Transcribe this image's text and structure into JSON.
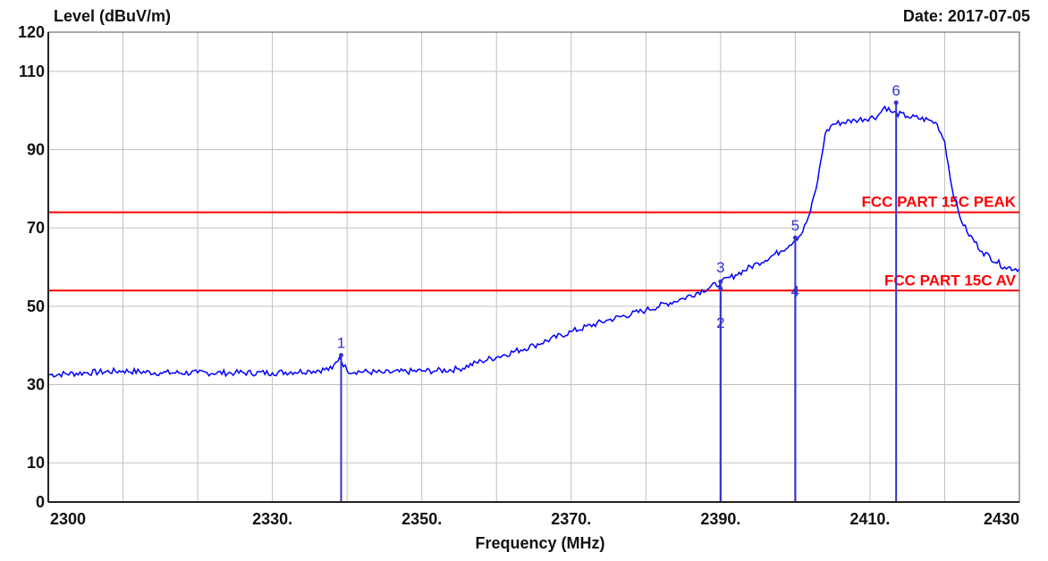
{
  "chart_data": {
    "type": "line",
    "ylabel": "Level (dBuV/m)",
    "date_label": "Date: 2017-07-05",
    "xlabel": "Frequency (MHz)",
    "xlim": [
      2300,
      2430
    ],
    "ylim": [
      0,
      120
    ],
    "grid": true,
    "x_ticks": [
      {
        "value": 2300,
        "label": "2300"
      },
      {
        "value": 2330,
        "label": "2330."
      },
      {
        "value": 2350,
        "label": "2350."
      },
      {
        "value": 2370,
        "label": "2370."
      },
      {
        "value": 2390,
        "label": "2390."
      },
      {
        "value": 2410,
        "label": "2410."
      },
      {
        "value": 2430,
        "label": "2430"
      }
    ],
    "y_ticks": [
      {
        "value": 0,
        "label": "0"
      },
      {
        "value": 10,
        "label": "10"
      },
      {
        "value": 30,
        "label": "30"
      },
      {
        "value": 50,
        "label": "50"
      },
      {
        "value": 70,
        "label": "70"
      },
      {
        "value": 90,
        "label": "90"
      },
      {
        "value": 110,
        "label": "110"
      },
      {
        "value": 120,
        "label": "120"
      }
    ],
    "limit_lines": [
      {
        "name": "FCC PART 15C PEAK",
        "value": 74,
        "color": "#ff0000"
      },
      {
        "name": "FCC PART 15C  AV",
        "value": 54,
        "color": "#ff0000"
      }
    ],
    "series": [
      {
        "color": "#0000ff",
        "x": [
          2300,
          2305,
          2310,
          2315,
          2320,
          2325,
          2330,
          2335,
          2338,
          2339,
          2340,
          2345,
          2350,
          2352,
          2355,
          2358,
          2360,
          2365,
          2370,
          2375,
          2380,
          2385,
          2390,
          2392,
          2395,
          2398,
          2400,
          2401,
          2402,
          2403,
          2404,
          2405,
          2408,
          2411,
          2412,
          2413,
          2415,
          2418,
          2419,
          2420,
          2421,
          2422,
          2423,
          2425,
          2428,
          2430
        ],
        "y": [
          32.5,
          33,
          33.5,
          33,
          33,
          33,
          33,
          33.5,
          34,
          37,
          33.5,
          33,
          33.5,
          33.5,
          34,
          36,
          37,
          40,
          43.5,
          46.5,
          49,
          52,
          56,
          58,
          61,
          64,
          67,
          69,
          74,
          82,
          94,
          96.5,
          97.5,
          98.5,
          101,
          99.5,
          98.5,
          97.5,
          96.5,
          92,
          80,
          73,
          69,
          64,
          60,
          59.5
        ]
      }
    ],
    "markers": [
      {
        "label": "1",
        "x": 2339.2,
        "y": 37.5
      },
      {
        "label": "2",
        "x": 2390,
        "y": 54.5
      },
      {
        "label": "3",
        "x": 2390,
        "y": 56.3
      },
      {
        "label": "4",
        "x": 2400,
        "y": 54
      },
      {
        "label": "5",
        "x": 2400,
        "y": 67.5
      },
      {
        "label": "6",
        "x": 2413.5,
        "y": 102
      }
    ]
  },
  "colors": {
    "grid": "#c0c0c0",
    "trace": "#0000ff",
    "marker": "#3333cc",
    "limit": "#ff0000"
  }
}
